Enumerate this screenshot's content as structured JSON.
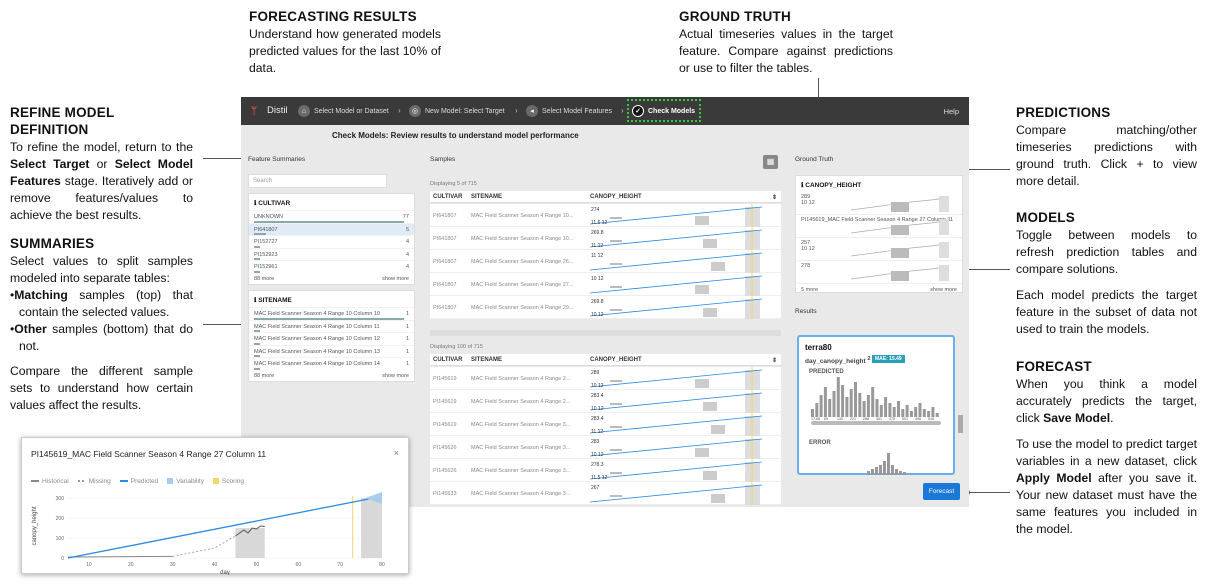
{
  "annotations": {
    "forecasting": {
      "title": "FORECASTING RESULTS",
      "text": "Understand how generated models predicted values for the last 10% of data."
    },
    "ground_truth": {
      "title": "GROUND TRUTH",
      "text": "Actual timeseries values in the target feature. Compare against predictions or use to filter the tables."
    },
    "refine": {
      "title": "REFINE MODEL DEFINITION",
      "t1": "To refine the model, return to the ",
      "b1": "Select Target",
      "t2": " or ",
      "b2": "Select Model Features",
      "t3": " stage. Iteratively add or remove features/values to achieve the best results."
    },
    "summaries": {
      "title": "SUMMARIES",
      "intro": "Select values to split samples modeled into separate tables:",
      "b1_bold": "Matching",
      "b1_text": " samples (top) that contain the selected values.",
      "b2_bold": "Other",
      "b2_text": " samples (bottom) that do not.",
      "outro": "Compare the different sample sets to understand how certain values affect the results."
    },
    "predictions": {
      "title": "PREDICTIONS",
      "text": "Compare matching/other timeseries predictions with ground truth. Click + to view more detail."
    },
    "models": {
      "title": "MODELS",
      "p1": "Toggle between models to refresh prediction tables and compare solutions.",
      "p2": "Each model predicts the target feature in the subset of data not used to train the models."
    },
    "forecast": {
      "title": "FORECAST",
      "p1a": "When you think a model accurately predicts the target, click ",
      "p1b": "Save Model",
      "p1c": ".",
      "p2a": "To use the model to predict target variables in a new dataset, click ",
      "p2b": "Apply Model",
      "p2c": " after you save it. Your new dataset must have the same features you included in the model."
    }
  },
  "app": {
    "brand": "Distil",
    "steps": [
      "Select Model or Dataset",
      "New Model: Select Target",
      "Select Model Features",
      "Check Models"
    ],
    "help": "Help",
    "subtitle": "Check Models: Review results to understand model performance",
    "feature_summaries": "Feature Summaries",
    "samples": "Samples",
    "ground_truth": "Ground Truth",
    "results": "Results",
    "search_placeholder": "Search",
    "cultivar": {
      "title": "CULTIVAR",
      "rows": [
        {
          "label": "UNKNOWN",
          "n": "77"
        },
        {
          "label": "PI641807",
          "n": "5"
        },
        {
          "label": "PI152727",
          "n": "4"
        },
        {
          "label": "PI152923",
          "n": "4"
        },
        {
          "label": "PI152961",
          "n": "4"
        }
      ],
      "more": "88 more",
      "show": "show more"
    },
    "sitename": {
      "title": "SITENAME",
      "rows": [
        {
          "label": "MAC Field Scanner Season 4 Range 10 Column 10",
          "n": "1"
        },
        {
          "label": "MAC Field Scanner Season 4 Range 10 Column 11",
          "n": "1"
        },
        {
          "label": "MAC Field Scanner Season 4 Range 10 Column 12",
          "n": "1"
        },
        {
          "label": "MAC Field Scanner Season 4 Range 10 Column 13",
          "n": "1"
        },
        {
          "label": "MAC Field Scanner Season 4 Range 10 Column 14",
          "n": "1"
        }
      ],
      "more": "88 more",
      "show": "show more"
    },
    "top_table": {
      "meta": "Displaying 5 of 715",
      "cols": [
        "CULTIVAR",
        "SITENAME",
        "CANOPY_HEIGHT"
      ],
      "rows": [
        {
          "c": "PI641807",
          "s": "MAC Field Scanner Season 4 Range 10...",
          "v": "274",
          "a": "11.6 12"
        },
        {
          "c": "PI641807",
          "s": "MAC Field Scanner Season 4 Range 10...",
          "v": "269.8",
          "a": "11 12"
        },
        {
          "c": "PI641807",
          "s": "MAC Field Scanner Season 4 Range 26...",
          "v": "11 12",
          "a": ""
        },
        {
          "c": "PI641807",
          "s": "MAC Field Scanner Season 4 Range 27...",
          "v": "10 12",
          "a": ""
        },
        {
          "c": "PI641807",
          "s": "MAC Field Scanner Season 4 Range 29...",
          "v": "269.8",
          "a": "10 12"
        }
      ]
    },
    "bottom_table": {
      "meta": "Displaying 100 of 715",
      "cols": [
        "CULTIVAR",
        "SITENAME",
        "CANOPY_HEIGHT"
      ],
      "rows": [
        {
          "c": "PI145619",
          "s": "MAC Field Scanner Season 4 Range 2...",
          "v": "289",
          "a": "10 12"
        },
        {
          "c": "PI145619",
          "s": "MAC Field Scanner Season 4 Range 2...",
          "v": "283.4",
          "a": "10 12"
        },
        {
          "c": "PI145619",
          "s": "MAC Field Scanner Season 4 Range 3...",
          "v": "283.4",
          "a": "11 12"
        },
        {
          "c": "PI145626",
          "s": "MAC Field Scanner Season 4 Range 3...",
          "v": "283",
          "a": "10 12"
        },
        {
          "c": "PI145626",
          "s": "MAC Field Scanner Season 4 Range 3...",
          "v": "278.3",
          "a": "11.5 12"
        },
        {
          "c": "PI145633",
          "s": "MAC Field Scanner Season 4 Range 3...",
          "v": "267",
          "a": ""
        }
      ]
    },
    "gt": {
      "title": "CANOPY_HEIGHT",
      "rows": [
        {
          "v": "289",
          "s": "10 12"
        },
        {
          "v": "PI145619_MAC Field Scanner Season 4 Range 27 Column 11",
          "s": ""
        },
        {
          "v": "257",
          "s": "10 12"
        },
        {
          "v": "278",
          "s": ""
        }
      ],
      "more": "5 more",
      "show": "show more"
    },
    "result": {
      "model": "terra80",
      "target": "day_canopy_height",
      "sup": "2",
      "mae": "MAE: 15.49",
      "predicted": "PREDICTED",
      "error": "ERROR",
      "ticks": [
        "17.68",
        "69",
        "130",
        "221",
        "288",
        "351",
        "475",
        "501",
        "496",
        "518"
      ]
    },
    "forecast_btn": "Forecast"
  },
  "popup": {
    "title": "PI145619_MAC Field Scanner Season 4 Range 27 Column 11",
    "close": "×",
    "legend": [
      "Historical",
      "Missing",
      "Predicted",
      "Variability",
      "Scoring"
    ],
    "ylabel": "canopy_height",
    "xlabel": "day",
    "xticks": [
      "10",
      "20",
      "30",
      "40",
      "50",
      "60",
      "70",
      "80"
    ],
    "yticks": [
      "0",
      "100",
      "200",
      "300"
    ]
  },
  "colors": {
    "accent": "#1a78d6",
    "predicted": "#2a8be0",
    "variability": "#a9cdf0",
    "scoring": "#f5d46a",
    "historical": "#888888",
    "highlight": "#33cc33"
  }
}
